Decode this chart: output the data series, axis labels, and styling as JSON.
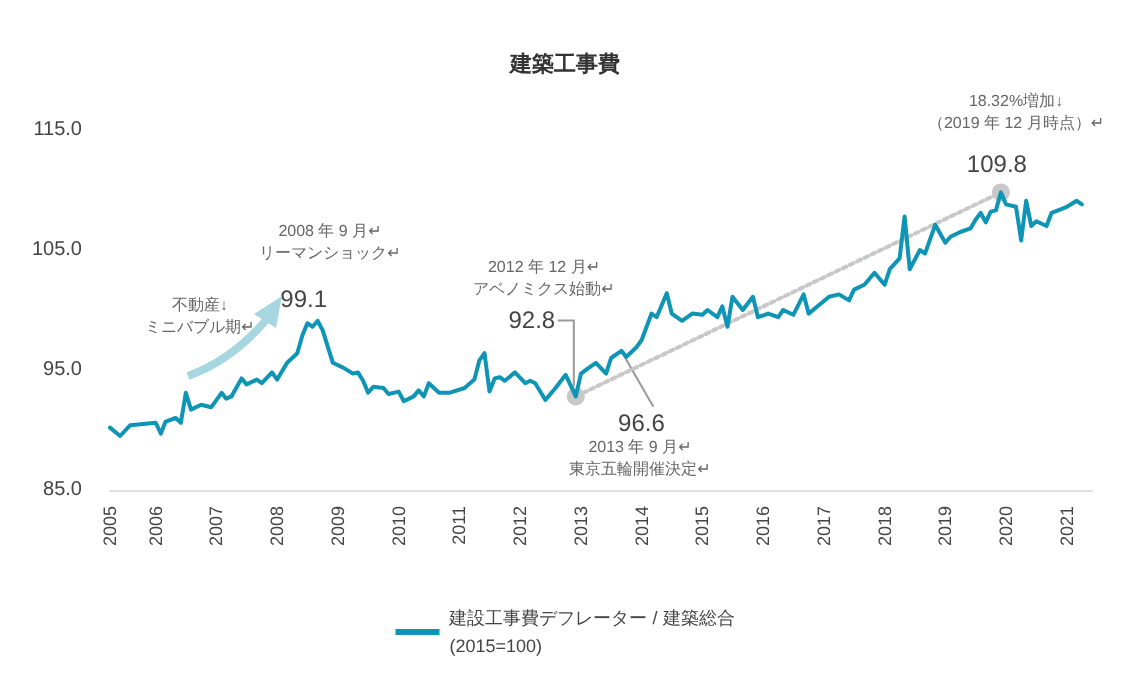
{
  "chart_data": {
    "type": "line",
    "title": "建築工事費",
    "x": [
      "2005-04",
      "2005-06",
      "2005-08",
      "2006-01",
      "2006-02",
      "2006-03",
      "2006-05",
      "2006-06",
      "2006-07",
      "2006-08",
      "2006-10",
      "2006-12",
      "2007-02",
      "2007-03",
      "2007-04",
      "2007-06",
      "2007-07",
      "2007-09",
      "2007-10",
      "2007-12",
      "2008-01",
      "2008-03",
      "2008-05",
      "2008-06",
      "2008-07",
      "2008-08",
      "2008-09",
      "2008-10",
      "2008-12",
      "2009-02",
      "2009-04",
      "2009-05",
      "2009-06",
      "2009-07",
      "2009-08",
      "2009-10",
      "2009-11",
      "2010-01",
      "2010-02",
      "2010-04",
      "2010-05",
      "2010-06",
      "2010-07",
      "2010-09",
      "2010-11",
      "2011-02",
      "2011-04",
      "2011-05",
      "2011-06",
      "2011-07",
      "2011-08",
      "2011-09",
      "2011-10",
      "2011-12",
      "2012-02",
      "2012-03",
      "2012-04",
      "2012-06",
      "2012-08",
      "2012-10",
      "2012-12",
      "2013-01",
      "2013-03",
      "2013-04",
      "2013-06",
      "2013-07",
      "2013-09",
      "2013-10",
      "2013-12",
      "2014-01",
      "2014-03",
      "2014-04",
      "2014-06",
      "2014-07",
      "2014-09",
      "2014-11",
      "2015-01",
      "2015-02",
      "2015-04",
      "2015-05",
      "2015-06",
      "2015-07",
      "2015-09",
      "2015-11",
      "2015-12",
      "2016-02",
      "2016-04",
      "2016-05",
      "2016-07",
      "2016-09",
      "2016-10",
      "2017-02",
      "2017-04",
      "2017-06",
      "2017-07",
      "2017-09",
      "2017-11",
      "2018-01",
      "2018-02",
      "2018-04",
      "2018-05",
      "2018-06",
      "2018-08",
      "2018-09",
      "2018-11",
      "2019-01",
      "2019-02",
      "2019-04",
      "2019-06",
      "2019-07",
      "2019-08",
      "2019-09",
      "2019-10",
      "2019-11",
      "2019-12",
      "2020-01",
      "2020-03",
      "2020-04",
      "2020-05",
      "2020-06",
      "2020-07",
      "2020-09",
      "2020-10",
      "2021-01",
      "2021-03",
      "2021-04"
    ],
    "series": [
      {
        "name": "建設工事費デフレーター / 建築総合\n(2015=100)",
        "color": "#0e94b4",
        "marker": "none",
        "line_style": "solid",
        "values": [
          90.2,
          89.5,
          90.4,
          90.6,
          89.7,
          90.7,
          91.0,
          90.6,
          93.1,
          91.7,
          92.1,
          91.9,
          93.1,
          92.6,
          92.8,
          94.3,
          93.8,
          94.2,
          93.9,
          94.8,
          94.2,
          95.6,
          96.4,
          97.9,
          98.9,
          98.6,
          99.1,
          98.3,
          95.6,
          95.2,
          94.7,
          94.8,
          94.1,
          93.1,
          93.6,
          93.5,
          93.0,
          93.2,
          92.4,
          92.8,
          93.3,
          92.8,
          93.9,
          93.1,
          93.1,
          93.5,
          94.2,
          95.8,
          96.4,
          93.2,
          94.3,
          94.4,
          94.1,
          94.8,
          93.9,
          94.1,
          93.9,
          92.5,
          93.5,
          94.6,
          92.8,
          94.7,
          95.3,
          95.6,
          94.7,
          96.0,
          96.6,
          96.1,
          96.9,
          97.5,
          99.7,
          99.4,
          101.4,
          99.7,
          99.1,
          99.7,
          99.6,
          100.0,
          99.4,
          100.3,
          98.6,
          101.1,
          100.0,
          101.1,
          99.4,
          99.7,
          99.4,
          100.0,
          99.6,
          101.3,
          99.7,
          101.1,
          101.3,
          100.8,
          101.7,
          102.1,
          103.1,
          102.1,
          103.4,
          104.3,
          107.8,
          103.4,
          105.0,
          104.7,
          107.1,
          105.6,
          106.1,
          106.5,
          106.8,
          107.5,
          108.1,
          107.3,
          108.2,
          108.3,
          109.8,
          108.8,
          108.6,
          105.8,
          109.1,
          107.0,
          107.4,
          107.0,
          108.1,
          108.6,
          109.1,
          108.8
        ]
      },
      {
        "type": "line",
        "x": [
          "2012-12",
          "2019-12"
        ],
        "color": "#c8c8c8",
        "marker": "circle",
        "line_style": "dotted",
        "values": [
          92.8,
          109.8
        ]
      }
    ],
    "xlim": [
      "2005-04",
      "2021-06"
    ],
    "xticks": [
      {
        "value": "2005-04",
        "label": "2005"
      },
      "2006",
      "2007",
      "2008",
      "2009",
      "2010",
      "2011",
      "2012",
      "2013",
      "2014",
      "2015",
      "2016",
      "2017",
      "2018",
      "2019",
      "2020",
      "2021"
    ],
    "ylim": [
      85,
      115
    ],
    "yticks": [
      {
        "value": 85,
        "label": "85.0"
      },
      {
        "value": 95,
        "label": "95.0"
      },
      {
        "value": 105,
        "label": "105.0"
      },
      {
        "value": 115,
        "label": "115.0"
      }
    ],
    "grid": false,
    "legend": "bottom",
    "annotations": [
      "2008 年 9 月↵\nリーマンショック↵",
      {
        "text": "99.1",
        "x": "2008-09",
        "y": 99.1
      },
      "不動産↓\nミニバブル期↵",
      "2012 年 12 月↵\nアベノミクス始動↵",
      {
        "text": "92.8",
        "x": "2012-12",
        "y": 92.8
      },
      {
        "text": "96.6",
        "x": "2013-09",
        "y": 96.6
      },
      "2013 年 9 月↵\n東京五輪開催決定↵",
      {
        "text": "109.8",
        "x": "2019-12",
        "y": 109.8
      },
      "18.32%増加↓\n（2019 年 12 月時点）↵"
    ]
  }
}
